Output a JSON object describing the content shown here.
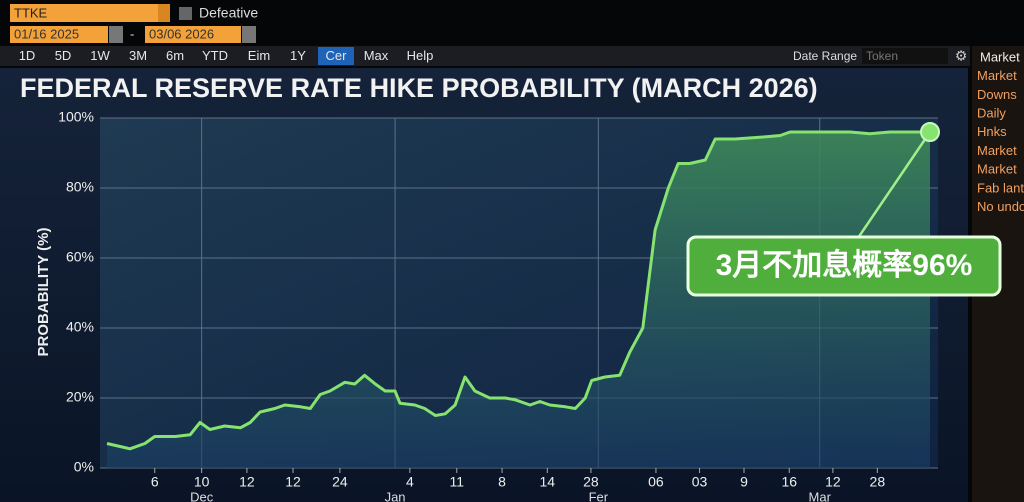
{
  "ui": {
    "symbol": "TTKE",
    "checkbox": "Defeative",
    "start_date": "01/16 2025",
    "dash": "-",
    "end_date": "03/06 2026",
    "buttons": [
      "1D",
      "5D",
      "1W",
      "3M",
      "6m",
      "YTD",
      "Eim",
      "1Y",
      "Cer",
      "Max",
      "Help"
    ],
    "active_button": "Cer",
    "date_range": "Date Range",
    "token": "Token",
    "side_panel": [
      "Market",
      "Market",
      "Downs",
      "Daily",
      "Hnks",
      "Market",
      "Market",
      "Fab lant",
      "No undo"
    ]
  },
  "chart_data": {
    "type": "line",
    "title": "FEDERAL RESERVE RATE HIKE PROBABILITY (MARCH 2026)",
    "y_label": "PROBABILITY (%)",
    "annotation": "3月不加息概率96%",
    "x": [
      0,
      2.8,
      4.6,
      5.8,
      8.3,
      10.1,
      11.3,
      12.5,
      14.3,
      16.2,
      17.4,
      18.6,
      20.4,
      21.6,
      23.5,
      24.7,
      25.9,
      27.1,
      28.9,
      30.1,
      31.3,
      32.6,
      33.8,
      35,
      35.6,
      37.4,
      38.6,
      39.9,
      41.1,
      42.3,
      43.5,
      44.7,
      46.5,
      48.4,
      49.6,
      51.4,
      52.6,
      53.8,
      55.7,
      56.9,
      58.1,
      58.9,
      60.5,
      62.3,
      63.5,
      65.1,
      66.6,
      68.2,
      69.4,
      70.8,
      72.7,
      73.9,
      76.3,
      79.3,
      81.8,
      83,
      85.4,
      87.8,
      90.3,
      92.7,
      95.1,
      100
    ],
    "series": [
      {
        "name": "Probability",
        "color": "#86e36f",
        "values": [
          7,
          5.5,
          7,
          9,
          9,
          9.5,
          13,
          11,
          12,
          11.5,
          13,
          16,
          17,
          18,
          17.5,
          17,
          21,
          22,
          24.5,
          24,
          26.5,
          24,
          22,
          22,
          18.5,
          18,
          17,
          15,
          15.5,
          18,
          26,
          22,
          20,
          20,
          19.5,
          18,
          19,
          18,
          17.5,
          17,
          20,
          25,
          26,
          26.5,
          33,
          40,
          68,
          80,
          87,
          87,
          88,
          94,
          94,
          94.5,
          95,
          96,
          96,
          96,
          96,
          95.5,
          96,
          96
        ]
      }
    ],
    "xlim": [
      0,
      100
    ],
    "ylim": [
      0,
      100
    ],
    "yticks": [
      {
        "value": 0,
        "label": "0%"
      },
      {
        "value": 20,
        "label": "20%"
      },
      {
        "value": 40,
        "label": "40%"
      },
      {
        "value": 60,
        "label": "60%"
      },
      {
        "value": 80,
        "label": "80%"
      },
      {
        "value": 100,
        "label": "100%"
      }
    ],
    "xticks": [
      {
        "value": 5.8,
        "label": "6"
      },
      {
        "value": 11.5,
        "label": "10"
      },
      {
        "value": 17,
        "label": "12"
      },
      {
        "value": 22.6,
        "label": "12"
      },
      {
        "value": 28.3,
        "label": "24"
      },
      {
        "value": 36.8,
        "label": "4"
      },
      {
        "value": 42.5,
        "label": "11"
      },
      {
        "value": 48,
        "label": "8"
      },
      {
        "value": 53.5,
        "label": "14"
      },
      {
        "value": 58.8,
        "label": "28"
      },
      {
        "value": 66.7,
        "label": "06"
      },
      {
        "value": 72,
        "label": "03"
      },
      {
        "value": 77.4,
        "label": "9"
      },
      {
        "value": 82.9,
        "label": "16"
      },
      {
        "value": 88.2,
        "label": "12"
      },
      {
        "value": 93.6,
        "label": "28"
      }
    ],
    "month_ticks": [
      {
        "value": 11.5,
        "label": "Dec"
      },
      {
        "value": 35,
        "label": "Jan"
      },
      {
        "value": 59.7,
        "label": "Fer"
      },
      {
        "value": 86.6,
        "label": "Mar"
      }
    ],
    "grid": true
  }
}
